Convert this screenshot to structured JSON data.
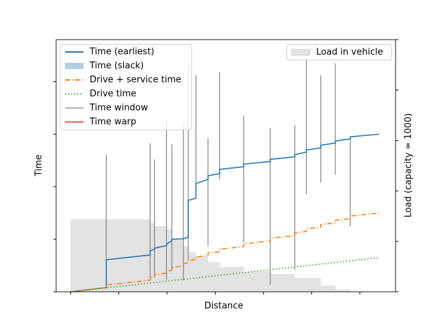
{
  "chart_data": {
    "type": "line",
    "xlabel": "Distance",
    "ylabel": "Time",
    "y2label": "Load (capacity = 1000)",
    "xlim": [
      -30,
      674
    ],
    "ylim": [
      0,
      480
    ],
    "y2lim": [
      0,
      1000
    ],
    "xticks": [
      0,
      100,
      200,
      300,
      400,
      500,
      600
    ],
    "yticks": [
      0,
      100,
      200,
      300,
      400
    ],
    "y2ticks": [
      0,
      200,
      400,
      600,
      800,
      1000
    ],
    "legend": "upper left",
    "series": [
      {
        "name": "Time (earliest)",
        "color": "#1f77b4",
        "style": "solid",
        "x": [
          0,
          74,
          74,
          165,
          165,
          174,
          174,
          199,
          199,
          210,
          210,
          234,
          244,
          244,
          260,
          260,
          285,
          285,
          309,
          309,
          359,
          359,
          414,
          414,
          465,
          465,
          489,
          489,
          519,
          519,
          549,
          549,
          580,
          580,
          640
        ],
        "values": [
          0,
          8,
          61,
          70,
          78,
          81,
          83,
          88,
          91,
          97,
          100,
          101,
          104,
          174,
          178,
          206,
          214,
          221,
          225,
          233,
          238,
          243,
          248,
          252,
          257,
          261,
          266,
          270,
          274,
          279,
          283,
          287,
          291,
          295,
          300
        ]
      },
      {
        "name": "Time (slack)",
        "color": "#b3cde3",
        "style": "band"
      },
      {
        "name": "Drive + service time",
        "color": "#ff7f0e",
        "style": "dashdot",
        "x": [
          0,
          74,
          74,
          165,
          165,
          174,
          174,
          199,
          199,
          210,
          210,
          234,
          234,
          244,
          244,
          260,
          260,
          285,
          285,
          309,
          309,
          359,
          359,
          414,
          414,
          465,
          465,
          489,
          489,
          519,
          519,
          549,
          549,
          580,
          580,
          640
        ],
        "values": [
          0,
          8,
          13,
          22,
          27,
          28,
          33,
          35,
          40,
          41,
          46,
          49,
          54,
          55,
          60,
          61,
          66,
          69,
          74,
          76,
          81,
          86,
          91,
          97,
          102,
          107,
          112,
          115,
          120,
          123,
          128,
          131,
          136,
          139,
          144,
          150
        ]
      },
      {
        "name": "Drive time",
        "color": "#2ca02c",
        "style": "dotted",
        "x": [
          0,
          640
        ],
        "values": [
          0,
          65
        ]
      },
      {
        "name": "Time window",
        "color": "#808080",
        "style": "vlines",
        "x": [
          74,
          165,
          174,
          199,
          210,
          234,
          244,
          260,
          285,
          309,
          359,
          414,
          465,
          489,
          519,
          549,
          580
        ],
        "low": [
          8,
          22,
          35,
          22,
          42,
          22,
          61,
          204,
          87,
          214,
          94,
          13,
          42,
          186,
          208,
          223,
          125
        ],
        "high": [
          261,
          283,
          252,
          327,
          281,
          321,
          431,
          412,
          292,
          418,
          335,
          312,
          317,
          444,
          412,
          435,
          295
        ]
      },
      {
        "name": "Time warp",
        "color": "#ef5350",
        "style": "solid"
      }
    ],
    "load": {
      "name": "Load in vehicle",
      "color": "#e3e3e3",
      "axis": "y2",
      "legend": "upper right",
      "bins": [
        0,
        165,
        174,
        199,
        210,
        234,
        244,
        260,
        285,
        309,
        359,
        414,
        465,
        489,
        519,
        549,
        580
      ],
      "values": [
        287,
        274,
        260,
        249,
        211,
        179,
        157,
        141,
        117,
        98,
        79,
        70,
        54,
        54,
        24,
        8
      ]
    }
  }
}
